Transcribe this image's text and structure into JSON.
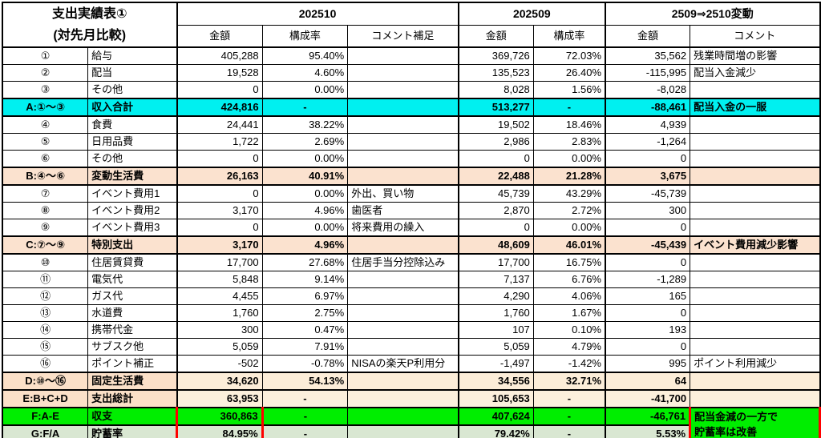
{
  "table": {
    "title_line1": "支出実績表①",
    "title_line2": "(対先月比較)",
    "groups": [
      {
        "label": "202510"
      },
      {
        "label": "202509"
      },
      {
        "label": "2509⇒2510変動"
      }
    ],
    "subheaders": [
      "金額",
      "構成率",
      "コメント補足",
      "金額",
      "構成率",
      "金額",
      "コメント"
    ],
    "merged_comment": [
      "配当金減の一方で",
      "貯蓄率は改善"
    ],
    "colors": {
      "income_total_cyan": "#00f0f0",
      "subtotal_peach": "#fbe2cf",
      "subtotal_cream": "#fcedd8",
      "balance_green": "#00ee00",
      "savings_light_green": "#d9e7d2",
      "highlight_border_red": "#ff0000"
    },
    "rows": [
      {
        "id": "①",
        "name": "給与",
        "amount1": "405,288",
        "ratio1": "95.40%",
        "note1": "",
        "amount2": "369,726",
        "ratio2": "72.03%",
        "amount3": "35,562",
        "note3": "残業時間増の影響",
        "style": "item"
      },
      {
        "id": "②",
        "name": "配当",
        "amount1": "19,528",
        "ratio1": "4.60%",
        "note1": "",
        "amount2": "135,523",
        "ratio2": "26.40%",
        "amount3": "-115,995",
        "note3": "配当入金減少",
        "style": "item"
      },
      {
        "id": "③",
        "name": "その他",
        "amount1": "0",
        "ratio1": "0.00%",
        "note1": "",
        "amount2": "8,028",
        "ratio2": "1.56%",
        "amount3": "-8,028",
        "note3": "",
        "style": "item"
      },
      {
        "id": "A:①～③",
        "name": "収入合計",
        "amount1": "424,816",
        "ratio1": "-",
        "note1": "",
        "amount2": "513,277",
        "ratio2": "-",
        "amount3": "-88,461",
        "note3": "配当入金の一服",
        "style": "cyan"
      },
      {
        "id": "④",
        "name": "食費",
        "amount1": "24,441",
        "ratio1": "38.22%",
        "note1": "",
        "amount2": "19,502",
        "ratio2": "18.46%",
        "amount3": "4,939",
        "note3": "",
        "style": "item"
      },
      {
        "id": "⑤",
        "name": "日用品費",
        "amount1": "1,722",
        "ratio1": "2.69%",
        "note1": "",
        "amount2": "2,986",
        "ratio2": "2.83%",
        "amount3": "-1,264",
        "note3": "",
        "style": "item"
      },
      {
        "id": "⑥",
        "name": "その他",
        "amount1": "0",
        "ratio1": "0.00%",
        "note1": "",
        "amount2": "0",
        "ratio2": "0.00%",
        "amount3": "0",
        "note3": "",
        "style": "item"
      },
      {
        "id": "B:④～⑥",
        "name": "変動生活費",
        "amount1": "26,163",
        "ratio1": "40.91%",
        "note1": "",
        "amount2": "22,488",
        "ratio2": "21.28%",
        "amount3": "3,675",
        "note3": "",
        "style": "peach"
      },
      {
        "id": "⑦",
        "name": "イベント費用1",
        "amount1": "0",
        "ratio1": "0.00%",
        "note1": "外出、買い物",
        "amount2": "45,739",
        "ratio2": "43.29%",
        "amount3": "-45,739",
        "note3": "",
        "style": "item"
      },
      {
        "id": "⑧",
        "name": "イベント費用2",
        "amount1": "3,170",
        "ratio1": "4.96%",
        "note1": "歯医者",
        "amount2": "2,870",
        "ratio2": "2.72%",
        "amount3": "300",
        "note3": "",
        "style": "item"
      },
      {
        "id": "⑨",
        "name": "イベント費用3",
        "amount1": "0",
        "ratio1": "0.00%",
        "note1": "将来費用の繰入",
        "amount2": "0",
        "ratio2": "0.00%",
        "amount3": "0",
        "note3": "",
        "style": "item"
      },
      {
        "id": "C:⑦～⑨",
        "name": "特別支出",
        "amount1": "3,170",
        "ratio1": "4.96%",
        "note1": "",
        "amount2": "48,609",
        "ratio2": "46.01%",
        "amount3": "-45,439",
        "note3": "イベント費用減少影響",
        "style": "peach"
      },
      {
        "id": "⑩",
        "name": "住居賃貸費",
        "amount1": "17,700",
        "ratio1": "27.68%",
        "note1": "住居手当分控除込み",
        "amount2": "17,700",
        "ratio2": "16.75%",
        "amount3": "0",
        "note3": "",
        "style": "item"
      },
      {
        "id": "⑪",
        "name": "電気代",
        "amount1": "5,848",
        "ratio1": "9.14%",
        "note1": "",
        "amount2": "7,137",
        "ratio2": "6.76%",
        "amount3": "-1,289",
        "note3": "",
        "style": "item"
      },
      {
        "id": "⑫",
        "name": "ガス代",
        "amount1": "4,455",
        "ratio1": "6.97%",
        "note1": "",
        "amount2": "4,290",
        "ratio2": "4.06%",
        "amount3": "165",
        "note3": "",
        "style": "item"
      },
      {
        "id": "⑬",
        "name": "水道費",
        "amount1": "1,760",
        "ratio1": "2.75%",
        "note1": "",
        "amount2": "1,760",
        "ratio2": "1.67%",
        "amount3": "0",
        "note3": "",
        "style": "item"
      },
      {
        "id": "⑭",
        "name": "携帯代金",
        "amount1": "300",
        "ratio1": "0.47%",
        "note1": "",
        "amount2": "107",
        "ratio2": "0.10%",
        "amount3": "193",
        "note3": "",
        "style": "item"
      },
      {
        "id": "⑮",
        "name": "サブスク他",
        "amount1": "5,059",
        "ratio1": "7.91%",
        "note1": "",
        "amount2": "5,059",
        "ratio2": "4.79%",
        "amount3": "0",
        "note3": "",
        "style": "item"
      },
      {
        "id": "⑯",
        "name": "ポイント補正",
        "amount1": "-502",
        "ratio1": "-0.78%",
        "note1": "NISAの楽天P利用分",
        "amount2": "-1,497",
        "ratio2": "-1.42%",
        "amount3": "995",
        "note3": "ポイント利用減少",
        "style": "item"
      },
      {
        "id": "D:⑩～⑯",
        "name": "固定生活費",
        "amount1": "34,620",
        "ratio1": "54.13%",
        "note1": "",
        "amount2": "34,556",
        "ratio2": "32.71%",
        "amount3": "64",
        "note3": "",
        "style": "peachD"
      },
      {
        "id": "E:B+C+D",
        "name": "支出総計",
        "amount1": "63,953",
        "ratio1": "-",
        "note1": "",
        "amount2": "105,653",
        "ratio2": "-",
        "amount3": "-41,700",
        "note3": "",
        "style": "peachE"
      },
      {
        "id": "F:A-E",
        "name": "収支",
        "amount1": "360,863",
        "ratio1": "-",
        "note1": "",
        "amount2": "407,624",
        "ratio2": "-",
        "amount3": "-46,761",
        "style": "green",
        "merge_note": true,
        "red_amount": "top"
      },
      {
        "id": "G:F/A",
        "name": "貯蓄率",
        "amount1": "84.95%",
        "ratio1": "-",
        "note1": "",
        "amount2": "79.42%",
        "ratio2": "-",
        "amount3": "5.53%",
        "style": "lgreen",
        "skip_note": true,
        "red_amount": "bottom"
      }
    ]
  }
}
